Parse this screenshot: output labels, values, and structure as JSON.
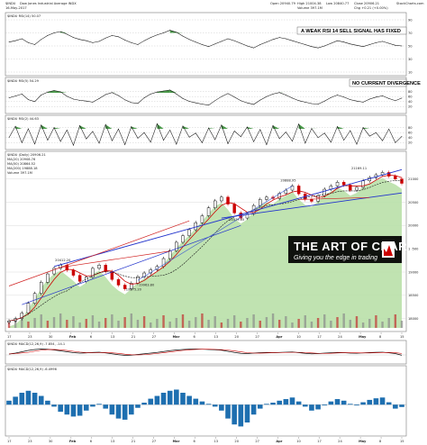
{
  "header": {
    "symbol": "$INDU",
    "description": "Dow Jones Industrial Average  INDX",
    "date": "16-May-2017",
    "open_label": "Open 20940.79",
    "high_label": "High 21004.38",
    "low_label": "Low 20840.77",
    "close_label": "Close 20906.21",
    "volume_label": "Volume 397.1M",
    "change_label": "Chg +0.21 (+0.00%)",
    "source": "StockCharts.com"
  },
  "panel_labels": {
    "rsi14": "$INDU RSI(14) 50.07",
    "rsi_second": "$INDU RSI(5) 54.29",
    "rsi_third": "$INDU RSI(2) 44.63",
    "price": "$INDU (Daily) 20906.21",
    "legend_ma1": "MA(20) 20908.76",
    "legend_ma2": "MA(50) 20864.52",
    "legend_ma3": "MA(200) 19888.18",
    "legend_vol": "Volume 397.1M",
    "macd": "$INDU MACD(12,26,9) -7.854, -14.1",
    "macd_hist": "$INDU MACD(12,26,9) -6.4996"
  },
  "annotations": {
    "sell_signal": "A WEAK RSI 14 SELL SIGNAL HAS FIXED",
    "no_divergence": "NO CURRENT DIVERGENCE",
    "watermark_title": "THE ART OF CHART",
    "watermark_tag": "Giving you the edge in trading"
  },
  "price_annotations": [
    "20412.20",
    "19975.20",
    "19963.80",
    "21169.11",
    "20379.55",
    "20888.95"
  ],
  "colors": {
    "candle_up": "#000000",
    "candle_down": "#cc0000",
    "ma_fast": "#cc0000",
    "ma_slow": "#1a1a1a",
    "trend_blue": "#2233cc",
    "trend_red": "#d02020",
    "rsi_fill": "#2d8a2d",
    "volume_fill": "#b9e0a8",
    "macd_hist": "#1e6fb0",
    "watermark_bg": "#000000"
  },
  "chart_data": [
    {
      "type": "line",
      "name": "RSI(14)",
      "ylim": [
        10,
        90
      ],
      "y_ticks": [
        90,
        70,
        50,
        30,
        10
      ],
      "values": [
        56,
        58,
        61,
        55,
        52,
        60,
        66,
        70,
        72,
        68,
        63,
        60,
        58,
        55,
        57,
        62,
        66,
        64,
        59,
        55,
        52,
        58,
        63,
        67,
        70,
        74,
        71,
        65,
        60,
        56,
        52,
        49,
        53,
        57,
        61,
        58,
        54,
        50,
        47,
        52,
        56,
        60,
        63,
        61,
        58,
        55,
        52,
        49,
        47,
        50,
        54,
        58,
        56,
        53,
        51,
        49,
        52,
        55,
        57,
        54,
        51,
        50
      ]
    },
    {
      "type": "line",
      "name": "RSI(5)",
      "ylim": [
        0,
        100
      ],
      "y_ticks": [
        80,
        60,
        40,
        20
      ],
      "values": [
        55,
        62,
        70,
        48,
        40,
        66,
        78,
        84,
        79,
        61,
        50,
        45,
        42,
        38,
        52,
        68,
        76,
        64,
        47,
        36,
        33,
        55,
        70,
        78,
        82,
        86,
        70,
        52,
        41,
        35,
        30,
        26,
        44,
        60,
        72,
        58,
        44,
        35,
        29,
        46,
        60,
        70,
        76,
        66,
        54,
        44,
        38,
        32,
        30,
        42,
        56,
        66,
        58,
        48,
        42,
        38,
        50,
        58,
        63,
        52,
        44,
        54
      ]
    },
    {
      "type": "line",
      "name": "RSI(2)",
      "ylim": [
        0,
        100
      ],
      "y_ticks": [
        80,
        60,
        40,
        20
      ],
      "values": [
        40,
        85,
        20,
        75,
        15,
        90,
        30,
        80,
        25,
        70,
        10,
        88,
        35,
        65,
        18,
        92,
        28,
        74,
        12,
        84,
        38,
        60,
        22,
        95,
        30,
        70,
        14,
        86,
        42,
        58,
        20,
        78,
        32,
        90,
        16,
        66,
        44,
        82,
        24,
        72,
        12,
        88,
        36,
        62,
        26,
        94,
        18,
        76,
        40,
        58,
        22,
        84,
        30,
        68,
        14,
        80,
        46,
        60,
        28,
        74,
        20,
        45
      ]
    },
    {
      "type": "line",
      "name": "$INDU",
      "ylim": [
        17800,
        21400
      ],
      "y_ticks": [
        21000,
        20500,
        20000,
        19500,
        19000,
        18500,
        18000
      ],
      "values": [
        17950,
        18000,
        18120,
        18330,
        18540,
        18780,
        18960,
        19080,
        19150,
        19040,
        18930,
        18800,
        18890,
        19080,
        19150,
        19010,
        18840,
        18720,
        18640,
        18760,
        18900,
        18980,
        19050,
        19120,
        19290,
        19460,
        19640,
        19780,
        19910,
        20060,
        20210,
        20380,
        20530,
        20610,
        20460,
        20270,
        20160,
        20250,
        20430,
        20560,
        20610,
        20580,
        20690,
        20760,
        20850,
        20680,
        20560,
        20520,
        20640,
        20780,
        20850,
        20930,
        20870,
        20760,
        20820,
        20960,
        21030,
        21090,
        21140,
        21060,
        21000,
        20906
      ]
    },
    {
      "type": "line",
      "name": "MACD(12,26,9)",
      "ylim": [
        -160,
        160
      ],
      "values": [
        20,
        40,
        70,
        100,
        120,
        130,
        125,
        110,
        90,
        70,
        50,
        40,
        45,
        55,
        60,
        45,
        25,
        5,
        -10,
        -5,
        10,
        25,
        40,
        55,
        75,
        95,
        110,
        120,
        128,
        130,
        126,
        120,
        115,
        105,
        80,
        55,
        35,
        30,
        40,
        50,
        55,
        50,
        55,
        60,
        65,
        50,
        35,
        25,
        30,
        40,
        48,
        55,
        50,
        40,
        38,
        45,
        52,
        58,
        60,
        48,
        30,
        -8
      ]
    },
    {
      "type": "bar",
      "name": "MACD histogram",
      "ylim": [
        -70,
        80
      ],
      "values": [
        10,
        20,
        30,
        35,
        30,
        22,
        10,
        -5,
        -18,
        -25,
        -30,
        -28,
        -15,
        -5,
        2,
        -10,
        -25,
        -35,
        -38,
        -25,
        -8,
        5,
        15,
        22,
        30,
        35,
        38,
        30,
        22,
        15,
        8,
        2,
        -5,
        -15,
        -35,
        -50,
        -55,
        -45,
        -25,
        -10,
        2,
        5,
        10,
        14,
        18,
        8,
        -5,
        -15,
        -12,
        -2,
        8,
        14,
        10,
        2,
        -2,
        6,
        12,
        16,
        18,
        6,
        -10,
        -6
      ]
    }
  ]
}
